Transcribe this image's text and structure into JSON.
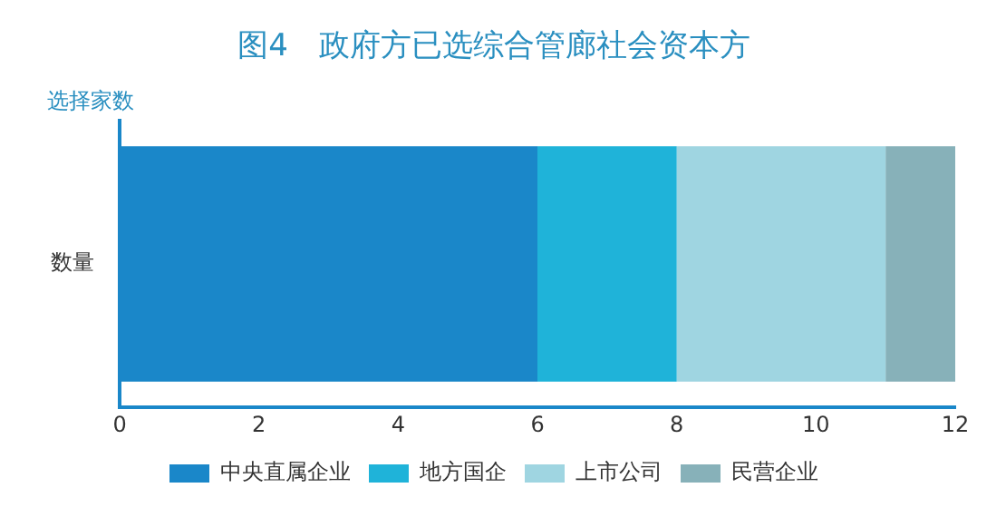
{
  "chart_data": {
    "type": "bar",
    "orientation": "horizontal",
    "stacked": true,
    "title": "图4　政府方已选综合管廊社会资本方",
    "ylabel": "选择家数",
    "categories": [
      "数量"
    ],
    "series": [
      {
        "name": "中央直属企业",
        "color": "#1a87c9",
        "values": [
          6
        ]
      },
      {
        "name": "地方国企",
        "color": "#1fb3d9",
        "values": [
          2
        ]
      },
      {
        "name": "上市公司",
        "color": "#9fd5e1",
        "values": [
          3
        ]
      },
      {
        "name": "民营企业",
        "color": "#87b1b9",
        "values": [
          1
        ]
      }
    ],
    "xlim": [
      0,
      12
    ],
    "xticks": [
      0,
      2,
      4,
      6,
      8,
      10,
      12
    ],
    "grid": false,
    "legend": "bottom"
  }
}
